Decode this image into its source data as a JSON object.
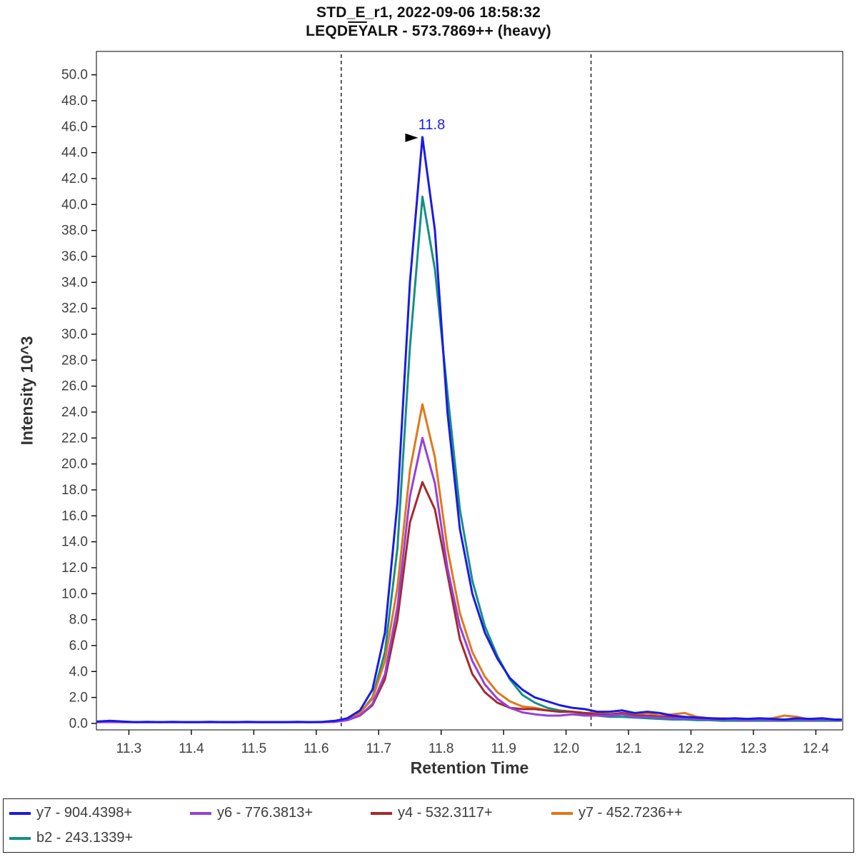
{
  "title": {
    "line1": "STD_E_r1, 2022-09-06 18:58:32",
    "line2_pre": "LEQD",
    "line2_over": "EY",
    "line2_post": "ALR - 573.7869++ (heavy)"
  },
  "chart_data": {
    "type": "line",
    "title": "STD_E_r1, 2022-09-06 18:58:32",
    "subtitle": "LEQDEYALR - 573.7869++ (heavy)",
    "xlabel": "Retention Time",
    "ylabel": "Intensity 10^3",
    "xlim": [
      11.248,
      12.443
    ],
    "ylim": [
      -0.5,
      51.8
    ],
    "grid": false,
    "legend_position": "bottom",
    "x_ticks": [
      11.3,
      11.4,
      11.5,
      11.6,
      11.7,
      11.8,
      11.9,
      12.0,
      12.1,
      12.2,
      12.3,
      12.4
    ],
    "y_ticks": [
      0,
      2,
      4,
      6,
      8,
      10,
      12,
      14,
      16,
      18,
      20,
      22,
      24,
      26,
      28,
      30,
      32,
      34,
      36,
      38,
      40,
      42,
      44,
      46,
      48,
      50
    ],
    "integration_boundaries": [
      11.64,
      12.04
    ],
    "annotation": {
      "label": "11.8",
      "x": 11.77,
      "y": 45.2,
      "text_color": "#1a1ae6",
      "arrow_color": "#000000"
    },
    "x": [
      11.25,
      11.27,
      11.29,
      11.31,
      11.33,
      11.35,
      11.37,
      11.39,
      11.41,
      11.43,
      11.45,
      11.47,
      11.49,
      11.51,
      11.53,
      11.55,
      11.57,
      11.59,
      11.61,
      11.63,
      11.65,
      11.67,
      11.69,
      11.71,
      11.73,
      11.75,
      11.77,
      11.79,
      11.81,
      11.83,
      11.85,
      11.87,
      11.89,
      11.91,
      11.93,
      11.95,
      11.97,
      11.99,
      12.01,
      12.03,
      12.05,
      12.07,
      12.09,
      12.11,
      12.13,
      12.15,
      12.17,
      12.19,
      12.21,
      12.23,
      12.25,
      12.27,
      12.29,
      12.31,
      12.33,
      12.35,
      12.37,
      12.39,
      12.41,
      12.43,
      12.44
    ],
    "series": [
      {
        "name": "y7 - 904.4398+",
        "color": "#1a1ae6",
        "values": [
          0.15,
          0.2,
          0.15,
          0.1,
          0.12,
          0.1,
          0.12,
          0.1,
          0.1,
          0.12,
          0.1,
          0.1,
          0.12,
          0.1,
          0.1,
          0.1,
          0.12,
          0.1,
          0.12,
          0.2,
          0.4,
          1.0,
          2.6,
          7.0,
          17.0,
          34.0,
          45.2,
          38.0,
          24.0,
          15.0,
          10.0,
          7.0,
          5.0,
          3.5,
          2.6,
          2.0,
          1.7,
          1.4,
          1.2,
          1.1,
          0.9,
          0.9,
          1.0,
          0.8,
          0.9,
          0.8,
          0.6,
          0.5,
          0.45,
          0.4,
          0.35,
          0.4,
          0.35,
          0.4,
          0.35,
          0.3,
          0.4,
          0.35,
          0.4,
          0.3,
          0.3
        ]
      },
      {
        "name": "y6 - 776.3813+",
        "color": "#9440e0",
        "values": [
          0.1,
          0.1,
          0.1,
          0.1,
          0.1,
          0.1,
          0.1,
          0.1,
          0.1,
          0.1,
          0.1,
          0.1,
          0.1,
          0.1,
          0.1,
          0.1,
          0.1,
          0.1,
          0.1,
          0.12,
          0.25,
          0.6,
          1.5,
          3.8,
          9.0,
          17.5,
          22.0,
          18.5,
          12.0,
          7.5,
          4.8,
          3.0,
          1.9,
          1.2,
          0.85,
          0.7,
          0.6,
          0.6,
          0.7,
          0.6,
          0.6,
          0.6,
          0.7,
          0.5,
          0.5,
          0.45,
          0.4,
          0.4,
          0.35,
          0.3,
          0.3,
          0.3,
          0.25,
          0.3,
          0.25,
          0.25,
          0.3,
          0.25,
          0.3,
          0.25,
          0.25
        ]
      },
      {
        "name": "y4 - 532.3117+",
        "color": "#a52a2a",
        "values": [
          0.1,
          0.12,
          0.1,
          0.1,
          0.1,
          0.1,
          0.1,
          0.1,
          0.1,
          0.1,
          0.1,
          0.1,
          0.1,
          0.1,
          0.1,
          0.1,
          0.1,
          0.1,
          0.1,
          0.12,
          0.25,
          0.6,
          1.4,
          3.4,
          8.0,
          15.5,
          18.6,
          16.5,
          11.5,
          6.5,
          3.8,
          2.4,
          1.6,
          1.2,
          1.1,
          1.1,
          1.0,
          0.9,
          0.9,
          0.8,
          0.7,
          0.7,
          0.8,
          0.6,
          0.6,
          0.5,
          0.5,
          0.5,
          0.4,
          0.4,
          0.35,
          0.35,
          0.3,
          0.3,
          0.3,
          0.3,
          0.3,
          0.3,
          0.3,
          0.3,
          0.3
        ]
      },
      {
        "name": "y7 - 452.7236++",
        "color": "#e07818",
        "values": [
          0.12,
          0.15,
          0.12,
          0.1,
          0.1,
          0.1,
          0.1,
          0.1,
          0.1,
          0.1,
          0.1,
          0.1,
          0.1,
          0.1,
          0.1,
          0.1,
          0.1,
          0.1,
          0.1,
          0.15,
          0.3,
          0.8,
          1.9,
          4.8,
          10.5,
          19.5,
          24.6,
          20.5,
          13.5,
          8.5,
          5.5,
          3.6,
          2.4,
          1.7,
          1.3,
          1.2,
          1.0,
          0.9,
          0.9,
          0.8,
          0.8,
          0.9,
          1.0,
          0.7,
          0.8,
          0.6,
          0.7,
          0.8,
          0.5,
          0.4,
          0.4,
          0.35,
          0.3,
          0.3,
          0.4,
          0.6,
          0.5,
          0.3,
          0.35,
          0.3,
          0.3
        ]
      },
      {
        "name": "b2 - 243.1339+",
        "color": "#159082",
        "values": [
          0.1,
          0.12,
          0.1,
          0.1,
          0.1,
          0.1,
          0.1,
          0.1,
          0.1,
          0.1,
          0.1,
          0.1,
          0.1,
          0.1,
          0.1,
          0.1,
          0.1,
          0.1,
          0.1,
          0.15,
          0.3,
          0.8,
          2.0,
          5.5,
          13.5,
          29.0,
          40.6,
          35.0,
          25.5,
          16.5,
          11.0,
          7.5,
          5.2,
          3.4,
          2.2,
          1.6,
          1.2,
          1.0,
          0.9,
          0.7,
          0.6,
          0.5,
          0.5,
          0.45,
          0.4,
          0.35,
          0.3,
          0.3,
          0.25,
          0.25,
          0.2,
          0.2,
          0.2,
          0.2,
          0.2,
          0.2,
          0.2,
          0.2,
          0.2,
          0.2,
          0.2
        ]
      }
    ]
  },
  "style": {
    "tick_label_color": "#3f3f3f",
    "axis_color": "#000000",
    "boundary_line_color": "#222222"
  }
}
